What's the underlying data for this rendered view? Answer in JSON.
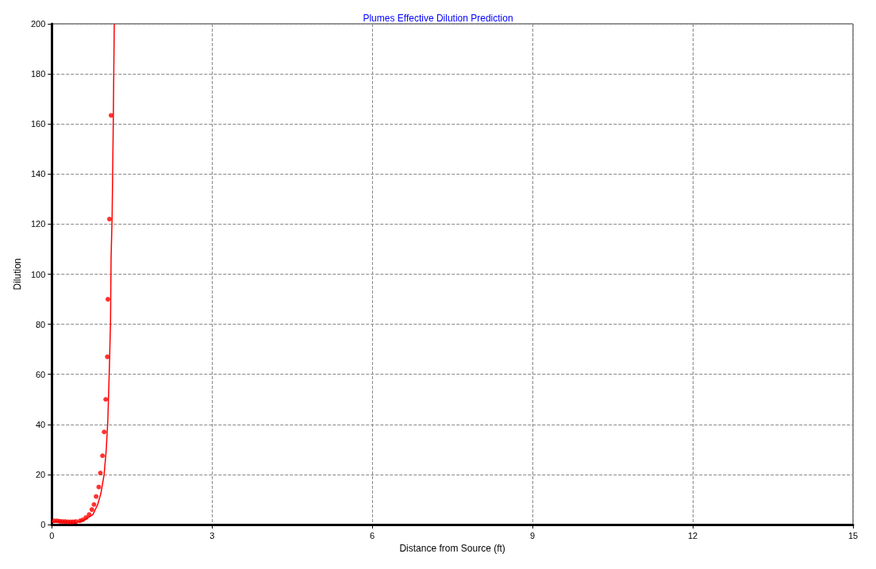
{
  "chart_data": {
    "type": "line",
    "title": "Plumes Effective Dilution Prediction",
    "xlabel": "Distance from Source (ft)",
    "ylabel": "Dilution",
    "xlim": [
      0,
      15
    ],
    "xticks": [
      0,
      3,
      6,
      9,
      12,
      15
    ],
    "ylim": [
      0,
      200
    ],
    "yticks": [
      0,
      20,
      40,
      60,
      80,
      100,
      120,
      140,
      160,
      180,
      200
    ],
    "grid": true,
    "series": [
      {
        "color": "#ff0000",
        "marker": "none",
        "line_style": "solid",
        "x": [
          0,
          0.2,
          0.3,
          0.45,
          0.63,
          0.77,
          0.86,
          0.92,
          0.98,
          1.02,
          1.05,
          1.08,
          1.1,
          1.11,
          1.13,
          1.15,
          1.17
        ],
        "values": [
          1,
          1,
          0.8,
          0.6,
          2,
          4,
          8,
          12.5,
          20,
          30,
          42,
          64,
          81,
          106,
          123.5,
          158,
          200
        ]
      },
      {
        "type": "scatter",
        "color": "#ff0000",
        "marker": "circle",
        "x": [
          0.05,
          0.1,
          0.15,
          0.2,
          0.25,
          0.3,
          0.35,
          0.4,
          0.45,
          0.53,
          0.58,
          0.64,
          0.7,
          0.75,
          0.79,
          0.83,
          0.88,
          0.91,
          0.95,
          0.98,
          1.01,
          1.04,
          1.05,
          1.08,
          1.11
        ],
        "values": [
          1.5,
          1.5,
          1.3,
          1.2,
          1.2,
          1.1,
          1.1,
          1.1,
          1.2,
          1.5,
          1.9,
          2.8,
          4,
          6,
          8,
          11.2,
          15,
          20.6,
          27.5,
          37,
          50,
          67,
          90,
          122,
          163.4
        ]
      }
    ]
  }
}
